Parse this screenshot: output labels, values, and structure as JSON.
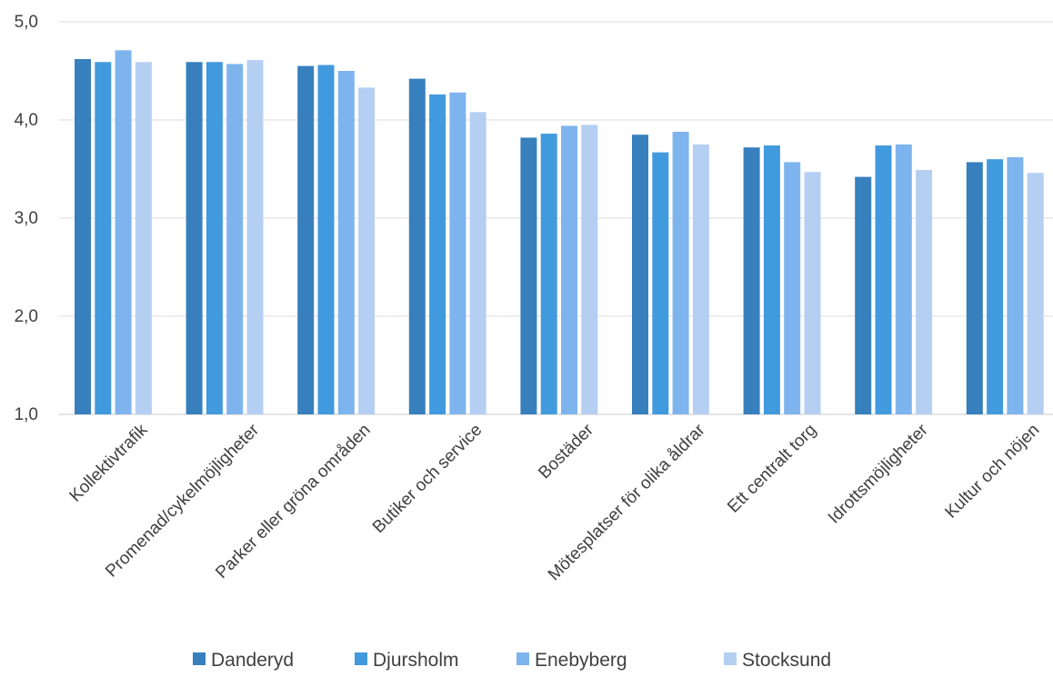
{
  "chart_data": {
    "type": "bar",
    "title": "",
    "xlabel": "",
    "ylabel": "",
    "ylim": [
      1.0,
      5.0
    ],
    "yticks": [
      "1,0",
      "2,0",
      "3,0",
      "4,0",
      "5,0"
    ],
    "grid": true,
    "legend_position": "bottom",
    "categories": [
      "Kollektivtrafik",
      "Promenad/cykelmöjligheter",
      "Parker eller gröna områden",
      "Butiker och service",
      "Bostäder",
      "Mötesplatser för olika åldrar",
      "Ett centralt torg",
      "Idrottsmöjligheter",
      "Kultur och nöjen"
    ],
    "series": [
      {
        "name": "Danderyd",
        "color": "#3780bd",
        "values": [
          4.62,
          4.59,
          4.55,
          4.42,
          3.82,
          3.85,
          3.72,
          3.42,
          3.57
        ]
      },
      {
        "name": "Djursholm",
        "color": "#419ade",
        "values": [
          4.59,
          4.59,
          4.56,
          4.26,
          3.86,
          3.67,
          3.74,
          3.74,
          3.6
        ]
      },
      {
        "name": "Enebyberg",
        "color": "#7eb4ee",
        "values": [
          4.71,
          4.57,
          4.5,
          4.28,
          3.94,
          3.88,
          3.57,
          3.75,
          3.62
        ]
      },
      {
        "name": "Stocksund",
        "color": "#b5cff3",
        "values": [
          4.59,
          4.61,
          4.33,
          4.08,
          3.95,
          3.75,
          3.47,
          3.49,
          3.46
        ]
      }
    ]
  }
}
